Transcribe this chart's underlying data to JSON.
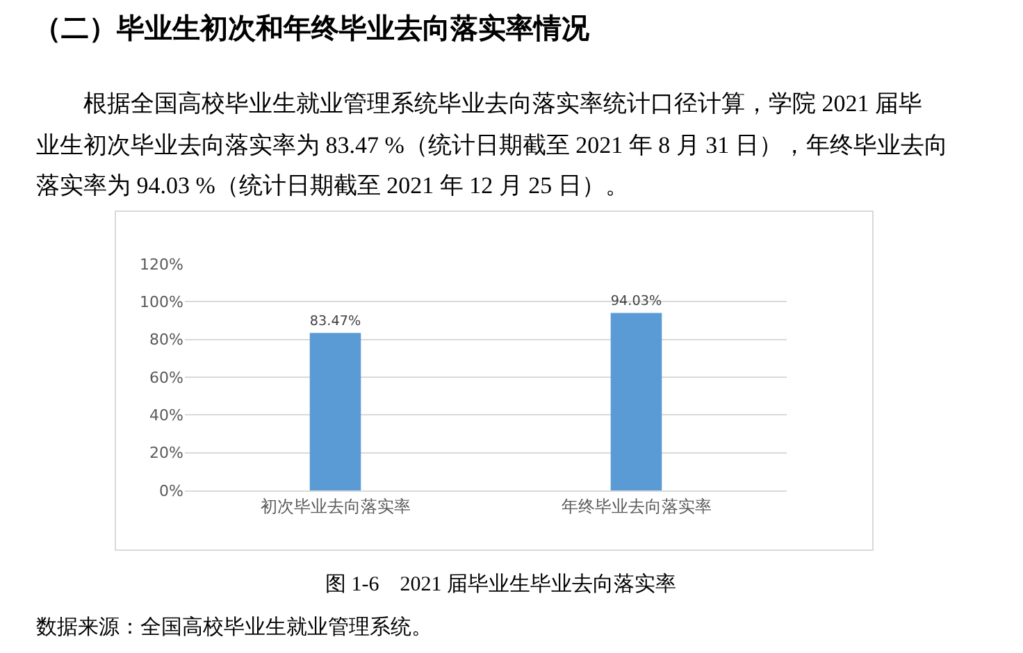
{
  "chart_data": {
    "type": "bar",
    "title": "（二）毕业生初次和年终毕业去向落实率情况",
    "subtitle": "根据全国高校毕业生就业管理系统毕业去向落实率统计口径计算，学院 2021 届毕业生初次毕业去向落实率为 83.47 %（统计日期截至 2021 年 8 月 31 日），年终毕业去向落实率为 94.03 %（统计日期截至 2021 年 12 月 25 日）。",
    "categories": [
      "初次毕业去向落实率",
      "年终毕业去向落实率"
    ],
    "values": [
      83.47,
      94.03
    ],
    "color": "#5b9bd5",
    "value_labels": [
      "83.47%",
      "94.03%"
    ],
    "ylim": [
      0,
      120
    ],
    "yticks": [
      {
        "value": 0,
        "label": "0%"
      },
      {
        "value": 20,
        "label": "20%"
      },
      {
        "value": 40,
        "label": "40%"
      },
      {
        "value": 60,
        "label": "60%"
      },
      {
        "value": 80,
        "label": "80%"
      },
      {
        "value": 100,
        "label": "100%"
      },
      {
        "value": 120,
        "label": "120%"
      }
    ],
    "grid": "y",
    "annotations": [
      "图 1-6　2021 届毕业生毕业去向落实率",
      "数据来源：全国高校毕业生就业管理系统。"
    ]
  }
}
